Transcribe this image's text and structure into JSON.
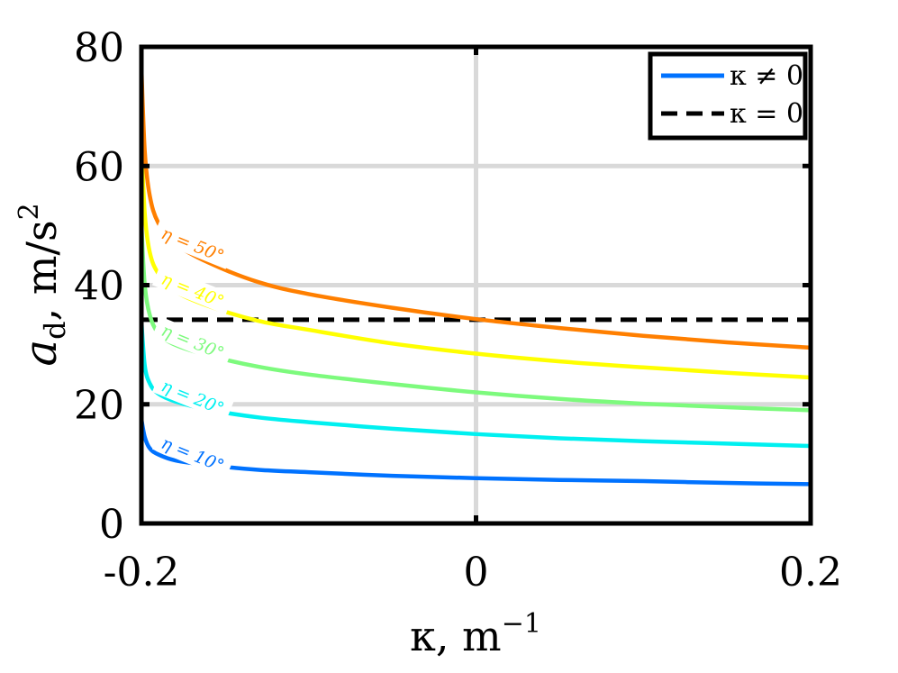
{
  "chart_data": {
    "type": "line",
    "xlabel": {
      "base": "κ, m",
      "sup": "−1"
    },
    "ylabel": {
      "base": "a",
      "sub": "d",
      "tail": ", m/s",
      "sup": "2"
    },
    "xlim": [
      -0.2,
      0.2
    ],
    "ylim": [
      0,
      80
    ],
    "x_ticks": [
      -0.2,
      0,
      0.2
    ],
    "x_tick_labels": [
      "-0.2",
      "0",
      "0.2"
    ],
    "y_ticks": [
      0,
      20,
      40,
      60,
      80
    ],
    "y_tick_labels": [
      "0",
      "20",
      "40",
      "60",
      "80"
    ],
    "grid": true,
    "legend": {
      "placement": "top-right",
      "entries": [
        {
          "label": "κ ≠ 0",
          "style": "solid",
          "color": "#0072ff"
        },
        {
          "label": "κ = 0",
          "style": "dashed",
          "color": "#000000"
        }
      ]
    },
    "reference_line": {
      "label": "κ = 0",
      "y": 34.2,
      "style": "dashed",
      "color": "#000000"
    },
    "series": [
      {
        "label": "η = 10°",
        "color": "#0072ff",
        "x": [
          -0.2,
          -0.198,
          -0.195,
          -0.19,
          -0.18,
          -0.16,
          -0.13,
          -0.1,
          -0.05,
          0,
          0.05,
          0.1,
          0.15,
          0.2
        ],
        "y": [
          17.5,
          14.5,
          12.6,
          11.6,
          10.6,
          9.8,
          9.0,
          8.6,
          8.0,
          7.6,
          7.3,
          7.1,
          6.8,
          6.6
        ]
      },
      {
        "label": "η = 20°",
        "color": "#00f0f0",
        "x": [
          -0.2,
          -0.198,
          -0.195,
          -0.19,
          -0.18,
          -0.16,
          -0.13,
          -0.1,
          -0.05,
          0,
          0.05,
          0.1,
          0.15,
          0.2
        ],
        "y": [
          34.0,
          26.5,
          23.5,
          21.8,
          20.5,
          19.1,
          17.8,
          17.0,
          15.9,
          15.0,
          14.3,
          13.8,
          13.4,
          13.0
        ]
      },
      {
        "label": "η = 30°",
        "color": "#7dfa7d",
        "x": [
          -0.2,
          -0.198,
          -0.195,
          -0.19,
          -0.18,
          -0.16,
          -0.13,
          -0.1,
          -0.05,
          0,
          0.05,
          0.1,
          0.15,
          0.2
        ],
        "y": [
          50.0,
          40.0,
          35.0,
          32.0,
          30.0,
          28.2,
          26.3,
          25.0,
          23.4,
          22.0,
          20.9,
          20.1,
          19.5,
          19.0
        ]
      },
      {
        "label": "η = 40°",
        "color": "#ffff00",
        "x": [
          -0.2,
          -0.198,
          -0.195,
          -0.19,
          -0.18,
          -0.16,
          -0.13,
          -0.1,
          -0.05,
          0,
          0.05,
          0.1,
          0.15,
          0.2
        ],
        "y": [
          64.0,
          52.0,
          45.5,
          42.0,
          39.0,
          36.5,
          34.0,
          32.5,
          30.2,
          28.5,
          27.2,
          26.2,
          25.3,
          24.5
        ]
      },
      {
        "label": "η = 50°",
        "color": "#ff7f00",
        "x": [
          -0.2,
          -0.198,
          -0.195,
          -0.19,
          -0.18,
          -0.16,
          -0.13,
          -0.1,
          -0.05,
          0,
          0.05,
          0.1,
          0.15,
          0.2
        ],
        "y": [
          76.5,
          62.5,
          55.0,
          50.5,
          47.0,
          43.8,
          40.5,
          38.5,
          36.2,
          34.3,
          32.8,
          31.5,
          30.4,
          29.5
        ]
      }
    ]
  }
}
